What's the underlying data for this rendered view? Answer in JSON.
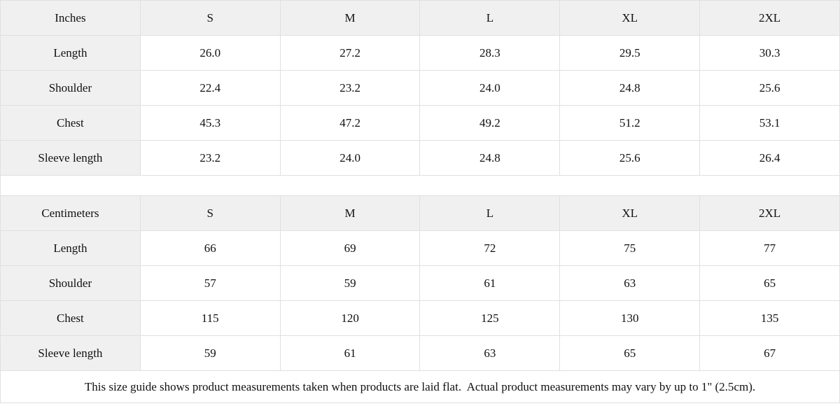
{
  "colors": {
    "header_background": "#f0f0f0",
    "cell_border": "#e0e0e0",
    "text": "#111111",
    "background": "#ffffff"
  },
  "size_guide": {
    "inches_table": {
      "unit_label": "Inches",
      "sizes": [
        "S",
        "M",
        "L",
        "XL",
        "2XL"
      ],
      "rows": [
        {
          "label": "Length",
          "values": [
            "26.0",
            "27.2",
            "28.3",
            "29.5",
            "30.3"
          ]
        },
        {
          "label": "Shoulder",
          "values": [
            "22.4",
            "23.2",
            "24.0",
            "24.8",
            "25.6"
          ]
        },
        {
          "label": "Chest",
          "values": [
            "45.3",
            "47.2",
            "49.2",
            "51.2",
            "53.1"
          ]
        },
        {
          "label": "Sleeve length",
          "values": [
            "23.2",
            "24.0",
            "24.8",
            "25.6",
            "26.4"
          ]
        }
      ]
    },
    "centimeters_table": {
      "unit_label": "Centimeters",
      "sizes": [
        "S",
        "M",
        "L",
        "XL",
        "2XL"
      ],
      "rows": [
        {
          "label": "Length",
          "values": [
            "66",
            "69",
            "72",
            "75",
            "77"
          ]
        },
        {
          "label": "Shoulder",
          "values": [
            "57",
            "59",
            "61",
            "63",
            "65"
          ]
        },
        {
          "label": "Chest",
          "values": [
            "115",
            "120",
            "125",
            "130",
            "135"
          ]
        },
        {
          "label": "Sleeve length",
          "values": [
            "59",
            "61",
            "63",
            "65",
            "67"
          ]
        }
      ]
    },
    "note": "This size guide shows product measurements taken when products are laid flat.  Actual product measurements may vary by up to 1\" (2.5cm)."
  }
}
